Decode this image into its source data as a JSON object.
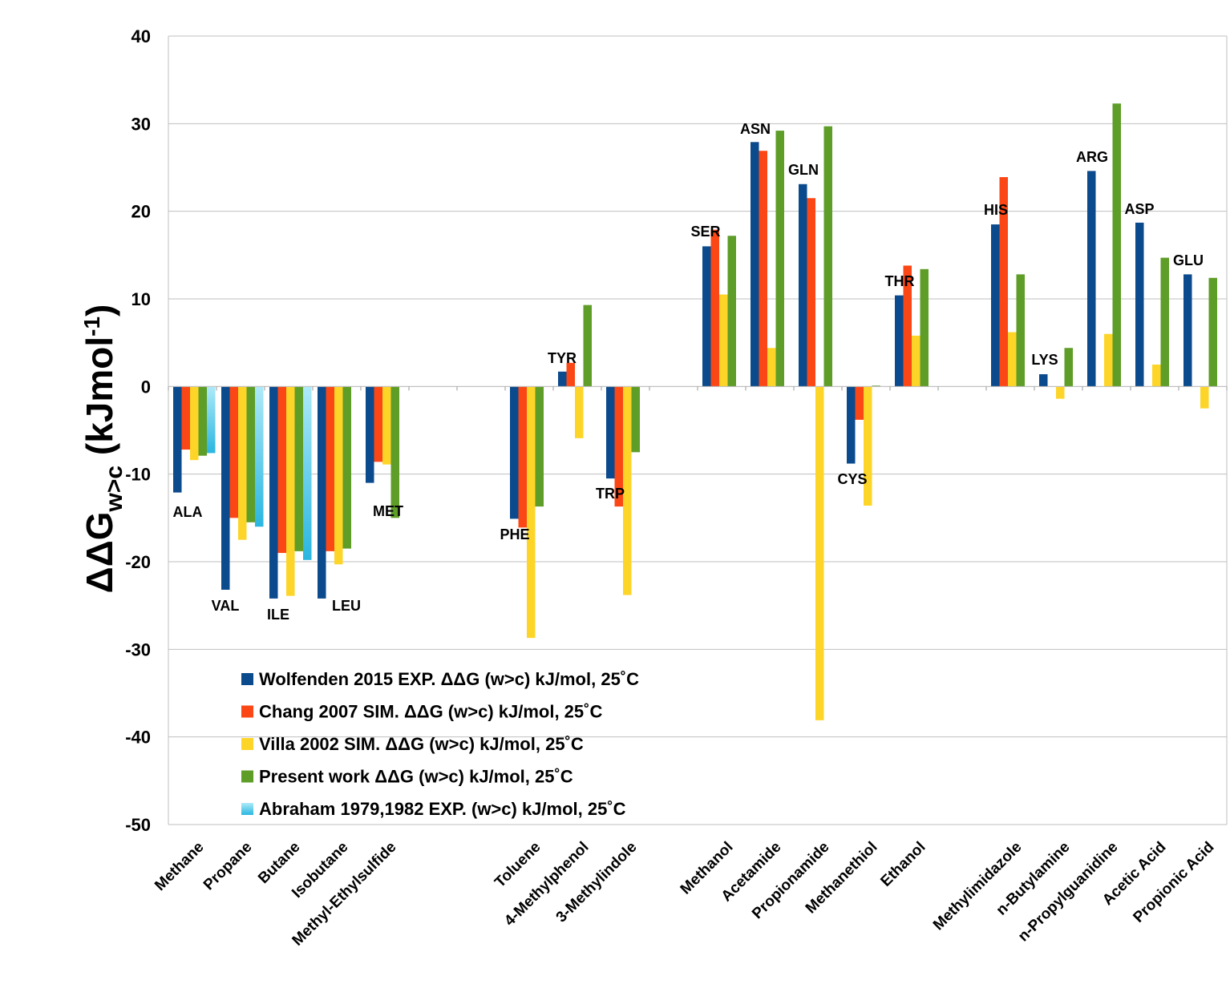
{
  "chart_data": {
    "type": "bar",
    "title": "",
    "ylabel": "ΔΔG",
    "ylabel_sub": "w>c",
    "ylabel_unit_pre": " (kJmol",
    "ylabel_sup": "-1",
    "ylabel_unit_post": ")",
    "ylim": [
      -50,
      40
    ],
    "yticks": [
      40,
      30,
      20,
      10,
      0,
      -10,
      -20,
      -30,
      -40,
      -50
    ],
    "grid": true,
    "legend_position": "bottom-left",
    "categories": [
      "Methane",
      "Propane",
      "Butane",
      "Isobutane",
      "Methyl-Ethylsulfide",
      "",
      "",
      "Toluene",
      "4-Methylphenol",
      "3-Methylindole",
      "",
      "Methanol",
      "Acetamide",
      "Propionamide",
      "Methanethiol",
      "Ethanol",
      "",
      "Methylimidazole",
      "n-Butylamine",
      "n-Propylguanidine",
      "Acetic Acid",
      "Propionic Acid"
    ],
    "annotations": [
      "ALA",
      "VAL",
      "ILE",
      "LEU",
      "MET",
      "",
      "",
      "PHE",
      "TYR",
      "TRP",
      "",
      "SER",
      "ASN",
      "GLN",
      "CYS",
      "THR",
      "",
      "HIS",
      "LYS",
      "ARG",
      "ASP",
      "GLU"
    ],
    "series": [
      {
        "name": "Wolfenden 2015 EXP. ΔΔG (w>c) kJ/mol, 25˚C",
        "color": "#0b4a8c",
        "values": [
          -12.1,
          -23.2,
          -24.2,
          -24.2,
          -11.0,
          null,
          null,
          -15.1,
          1.7,
          -10.5,
          null,
          16.0,
          27.9,
          23.1,
          -8.8,
          10.4,
          null,
          18.5,
          1.4,
          24.6,
          18.7,
          12.8
        ]
      },
      {
        "name": "Chang 2007 SIM. ΔΔG (w>c) kJ/mol, 25˚C",
        "color": "#fb4715",
        "values": [
          -7.2,
          -15.0,
          -19.0,
          -18.8,
          -8.6,
          null,
          null,
          -16.1,
          2.7,
          -13.7,
          null,
          17.9,
          26.9,
          21.5,
          -3.8,
          13.8,
          null,
          23.9,
          null,
          null,
          null,
          null
        ]
      },
      {
        "name": "Villa 2002 SIM. ΔΔG (w>c) kJ/mol, 25˚C",
        "color": "#fdd528",
        "values": [
          -8.4,
          -17.5,
          -23.9,
          -20.3,
          -8.9,
          null,
          null,
          -28.7,
          -5.9,
          -23.8,
          null,
          10.5,
          4.4,
          -38.1,
          -13.6,
          5.8,
          null,
          6.2,
          -1.4,
          6.0,
          2.5,
          -2.5
        ]
      },
      {
        "name": "Present work ΔΔG (w>c) kJ/mol, 25˚C",
        "color": "#5e9d28",
        "values": [
          -7.9,
          -15.5,
          -18.8,
          -18.5,
          -15.0,
          null,
          null,
          -13.7,
          9.3,
          -7.5,
          null,
          17.2,
          29.2,
          29.7,
          0.1,
          13.4,
          null,
          12.8,
          4.4,
          32.3,
          14.7,
          12.4
        ]
      },
      {
        "name": "Abraham 1979,1982 EXP. (w>c) kJ/mol, 25˚C",
        "color": "#5ed0ec",
        "values": [
          -7.6,
          -16.0,
          -19.8,
          null,
          null,
          null,
          null,
          null,
          null,
          null,
          null,
          null,
          null,
          null,
          null,
          null,
          null,
          null,
          null,
          null,
          null,
          null
        ]
      }
    ]
  }
}
